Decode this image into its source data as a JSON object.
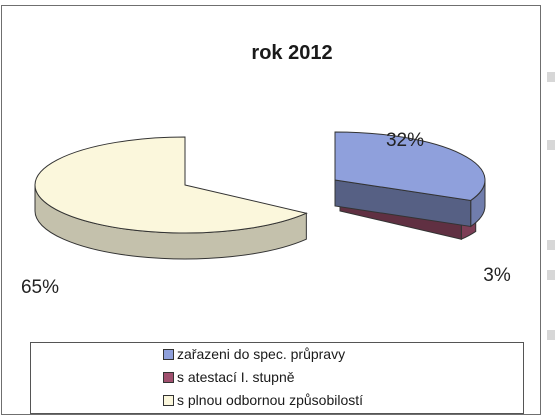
{
  "chart_data": {
    "type": "pie",
    "title": "rok 2012",
    "slices": [
      {
        "label": "zařazeni do spec. průpravy",
        "value": 32,
        "label_text": "32%",
        "color": "#8fa0dc"
      },
      {
        "label": "s atestací I. stupně",
        "value": 3,
        "label_text": "3%",
        "color": "#a0506e"
      },
      {
        "label": "s plnou odbornou způsobilostí",
        "value": 65,
        "label_text": "65%",
        "color": "#fbf7dc"
      }
    ],
    "legend_position": "bottom",
    "style": "3d-exploded"
  }
}
